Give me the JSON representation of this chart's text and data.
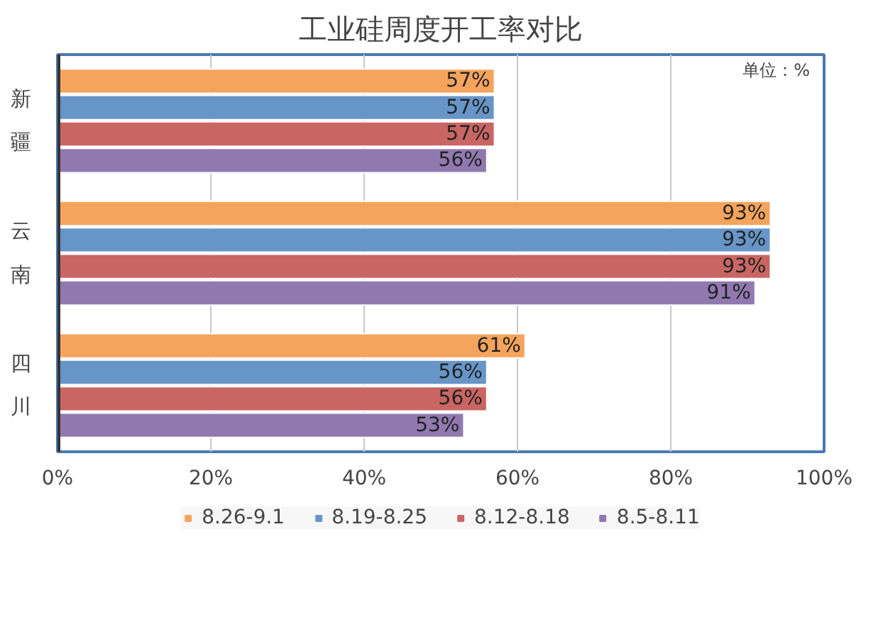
{
  "chart_data": {
    "type": "bar",
    "orientation": "horizontal",
    "title": "工业硅周度开工率对比",
    "categories": [
      "新疆",
      "云南",
      "四川"
    ],
    "series": [
      {
        "name": "8.26-9.1",
        "color": "#f5a45d",
        "values": [
          57,
          93,
          61
        ],
        "value_labels": [
          "57%",
          "93%",
          "61%"
        ]
      },
      {
        "name": "8.19-8.25",
        "color": "#6795c8",
        "values": [
          57,
          93,
          56
        ],
        "value_labels": [
          "57%",
          "93%",
          "56%"
        ]
      },
      {
        "name": "8.12-8.18",
        "color": "#c96663",
        "values": [
          57,
          93,
          56
        ],
        "value_labels": [
          "57%",
          "93%",
          "56%"
        ]
      },
      {
        "name": "8.5-8.11",
        "color": "#9179b0",
        "values": [
          56,
          91,
          53
        ],
        "value_labels": [
          "56%",
          "91%",
          "53%"
        ]
      }
    ],
    "xlim": [
      0,
      100
    ],
    "xticks": [
      {
        "value": 0,
        "label": "0%"
      },
      {
        "value": 20,
        "label": "20%"
      },
      {
        "value": 40,
        "label": "40%"
      },
      {
        "value": 60,
        "label": "60%"
      },
      {
        "value": 80,
        "label": "80%"
      },
      {
        "value": 100,
        "label": "100%"
      }
    ],
    "annotations": [
      "单位：%"
    ],
    "grid": "x",
    "legend": "bottom"
  }
}
